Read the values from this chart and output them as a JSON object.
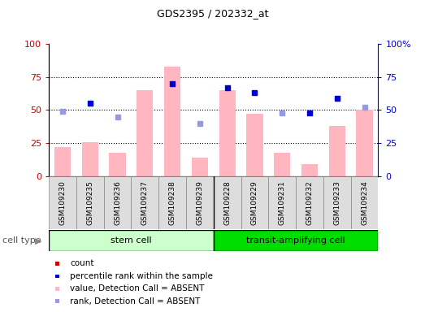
{
  "title": "GDS2395 / 202332_at",
  "samples": [
    "GSM109230",
    "GSM109235",
    "GSM109236",
    "GSM109237",
    "GSM109238",
    "GSM109239",
    "GSM109228",
    "GSM109229",
    "GSM109231",
    "GSM109232",
    "GSM109233",
    "GSM109234"
  ],
  "bar_values": [
    22,
    26,
    18,
    65,
    83,
    14,
    65,
    47,
    18,
    9,
    38,
    50
  ],
  "dot_values": [
    49,
    55,
    45,
    null,
    70,
    40,
    67,
    63,
    48,
    48,
    59,
    52
  ],
  "absent_bars": [
    true,
    true,
    true,
    true,
    true,
    true,
    true,
    true,
    true,
    true,
    true,
    true
  ],
  "absent_dots": [
    true,
    false,
    true,
    false,
    false,
    true,
    false,
    false,
    true,
    false,
    false,
    true
  ],
  "stem_color_light": "#CCFFCC",
  "stem_color_dark": "#00DD00",
  "bar_color_absent": "#FFB6C1",
  "dot_color_present": "#0000CC",
  "dot_color_absent": "#9999DD",
  "ylabel_left_color": "#CC0000",
  "ylabel_right_color": "#0000CC",
  "ylim": [
    0,
    100
  ],
  "grid_values": [
    25,
    50,
    75
  ],
  "n_stem": 6,
  "legend_items": [
    {
      "label": "count",
      "color": "#CC0000"
    },
    {
      "label": "percentile rank within the sample",
      "color": "#0000CC"
    },
    {
      "label": "value, Detection Call = ABSENT",
      "color": "#FFB6C1"
    },
    {
      "label": "rank, Detection Call = ABSENT",
      "color": "#9999DD"
    }
  ]
}
